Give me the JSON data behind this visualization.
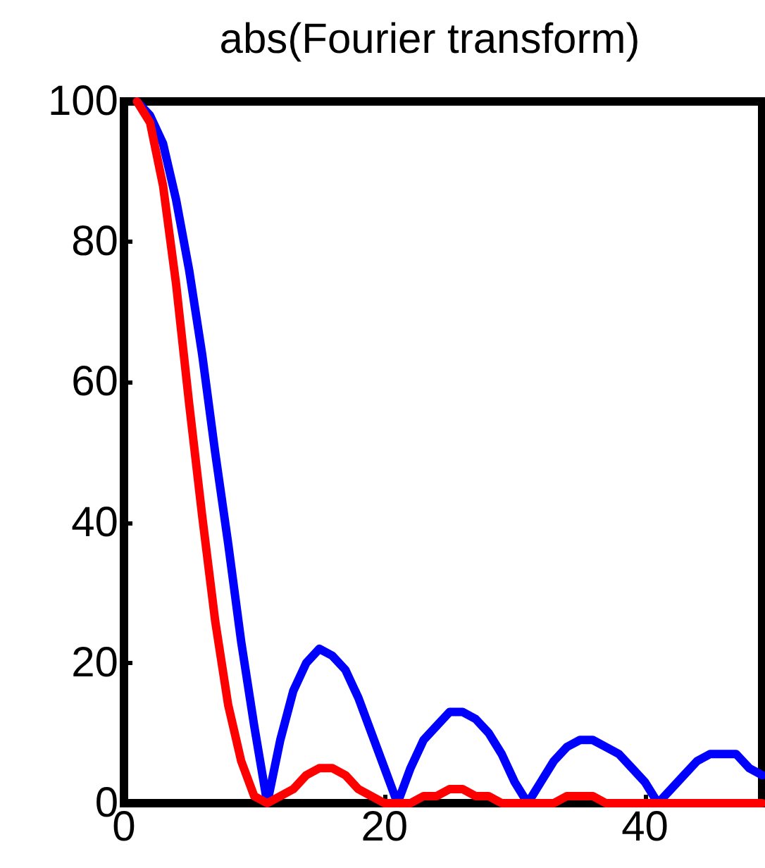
{
  "chart_data": {
    "type": "line",
    "title": "abs(Fourier transform)",
    "x": [
      1,
      2,
      3,
      4,
      5,
      6,
      7,
      8,
      9,
      10,
      11,
      12,
      13,
      14,
      15,
      16,
      17,
      18,
      19,
      20,
      21,
      22,
      23,
      24,
      25,
      26,
      27,
      28,
      29,
      30,
      31,
      32,
      33,
      34,
      35,
      36,
      37,
      38,
      39,
      40,
      41,
      42,
      43,
      44,
      45,
      46,
      47,
      48,
      49
    ],
    "series": [
      {
        "color": "#0000ff",
        "values": [
          100,
          98,
          94,
          86,
          76,
          64,
          50,
          37,
          23,
          11,
          0,
          9,
          16,
          20,
          22,
          21,
          19,
          15,
          10,
          5,
          0,
          5,
          9,
          11,
          13,
          13,
          12,
          10,
          7,
          3,
          0,
          3,
          6,
          8,
          9,
          9,
          8,
          7,
          5,
          3,
          0,
          2,
          4,
          6,
          7,
          7,
          7,
          5,
          4
        ]
      },
      {
        "color": "#ff0000",
        "values": [
          100,
          97,
          88,
          74,
          57,
          41,
          26,
          14,
          6,
          1,
          0,
          1,
          2,
          4,
          5,
          5,
          4,
          2,
          1,
          0,
          0,
          0,
          1,
          1,
          2,
          2,
          1,
          1,
          0,
          0,
          0,
          0,
          0,
          1,
          1,
          1,
          0,
          0,
          0,
          0,
          0,
          0,
          0,
          0,
          0,
          0,
          0,
          0,
          0
        ]
      }
    ],
    "xlim": [
      0,
      49
    ],
    "xticks": [
      0,
      20,
      40
    ],
    "ylim": [
      0,
      100
    ],
    "yticks": [
      0,
      20,
      40,
      60,
      80,
      100
    ],
    "grid": false,
    "marker": "none",
    "line_style": "solid"
  }
}
